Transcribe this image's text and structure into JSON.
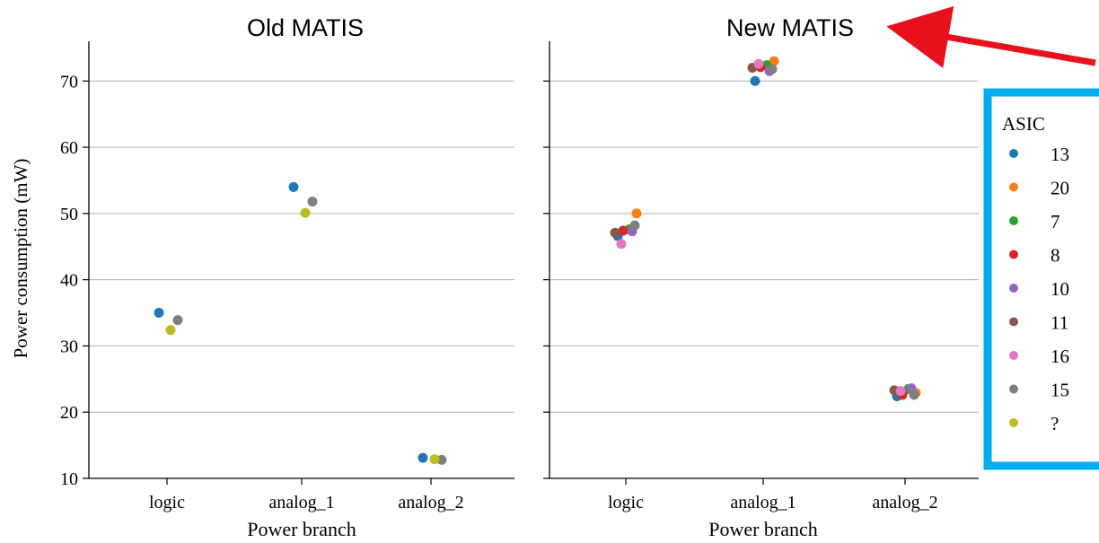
{
  "chart_data": [
    {
      "type": "scatter",
      "title": "Old MATIS",
      "xlabel": "Power branch",
      "ylabel": "Power consumption (mW)",
      "categories": [
        "logic",
        "analog_1",
        "analog_2"
      ],
      "ylim": [
        10,
        76
      ],
      "yticks": [
        10,
        20,
        30,
        40,
        50,
        60,
        70
      ],
      "grid": "horizontal",
      "series": [
        {
          "name": "13",
          "color": "#1f77b4",
          "points": [
            {
              "x": "logic",
              "y": 35.0
            },
            {
              "x": "analog_1",
              "y": 54.0
            },
            {
              "x": "analog_2",
              "y": 13.1
            }
          ]
        },
        {
          "name": "15",
          "color": "#7f7f7f",
          "points": [
            {
              "x": "logic",
              "y": 33.9
            },
            {
              "x": "analog_1",
              "y": 51.8
            },
            {
              "x": "analog_2",
              "y": 12.8
            }
          ]
        },
        {
          "name": "?",
          "color": "#bcbd22",
          "points": [
            {
              "x": "logic",
              "y": 32.4
            },
            {
              "x": "analog_1",
              "y": 50.1
            },
            {
              "x": "analog_2",
              "y": 12.9
            }
          ]
        }
      ]
    },
    {
      "type": "scatter",
      "title": "New MATIS",
      "xlabel": "Power branch",
      "categories": [
        "logic",
        "analog_1",
        "analog_2"
      ],
      "ylim": [
        10,
        76
      ],
      "grid": "horizontal",
      "series": [
        {
          "name": "13",
          "color": "#1f77b4",
          "points": [
            {
              "x": "logic",
              "y": 46.6
            },
            {
              "x": "analog_1",
              "y": 70.0
            },
            {
              "x": "analog_2",
              "y": 22.4
            }
          ]
        },
        {
          "name": "20",
          "color": "#ff7f0e",
          "points": [
            {
              "x": "logic",
              "y": 50.0
            },
            {
              "x": "analog_1",
              "y": 73.0
            },
            {
              "x": "analog_2",
              "y": 22.9
            }
          ]
        },
        {
          "name": "7",
          "color": "#2ca02c",
          "points": [
            {
              "x": "logic",
              "y": 47.6
            },
            {
              "x": "analog_1",
              "y": 72.4
            },
            {
              "x": "analog_2",
              "y": 23.5
            }
          ]
        },
        {
          "name": "8",
          "color": "#d62728",
          "points": [
            {
              "x": "logic",
              "y": 47.4
            },
            {
              "x": "analog_1",
              "y": 72.1
            },
            {
              "x": "analog_2",
              "y": 22.6
            }
          ]
        },
        {
          "name": "10",
          "color": "#9467bd",
          "points": [
            {
              "x": "logic",
              "y": 47.3
            },
            {
              "x": "analog_1",
              "y": 71.5
            },
            {
              "x": "analog_2",
              "y": 23.6
            }
          ]
        },
        {
          "name": "11",
          "color": "#8c564b",
          "points": [
            {
              "x": "logic",
              "y": 47.1
            },
            {
              "x": "analog_1",
              "y": 72.0
            },
            {
              "x": "analog_2",
              "y": 23.3
            }
          ]
        },
        {
          "name": "16",
          "color": "#e377c2",
          "points": [
            {
              "x": "logic",
              "y": 45.4
            },
            {
              "x": "analog_1",
              "y": 72.6
            },
            {
              "x": "analog_2",
              "y": 23.2
            }
          ]
        },
        {
          "name": "15",
          "color": "#7f7f7f",
          "points": [
            {
              "x": "logic",
              "y": 48.2
            },
            {
              "x": "analog_1",
              "y": 71.8
            },
            {
              "x": "analog_2",
              "y": 22.6
            }
          ]
        }
      ]
    }
  ],
  "legend": {
    "title": "ASIC",
    "placement": "right",
    "border_color": "#00aeef",
    "entries": [
      {
        "label": "13",
        "color": "#1f77b4"
      },
      {
        "label": "20",
        "color": "#ff7f0e"
      },
      {
        "label": "7",
        "color": "#2ca02c"
      },
      {
        "label": "8",
        "color": "#d62728"
      },
      {
        "label": "10",
        "color": "#9467bd"
      },
      {
        "label": "11",
        "color": "#8c564b"
      },
      {
        "label": "16",
        "color": "#e377c2"
      },
      {
        "label": "15",
        "color": "#7f7f7f"
      },
      {
        "label": "?",
        "color": "#bcbd22"
      }
    ]
  },
  "annotation": {
    "arrow_color": "#e8101c",
    "points_to": "New MATIS"
  }
}
